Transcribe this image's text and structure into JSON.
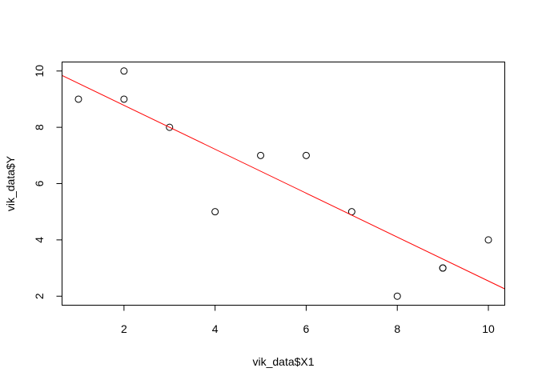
{
  "chart_data": {
    "type": "scatter",
    "title": "",
    "xlabel": "vik_data$X1",
    "ylabel": "vik_data$Y",
    "xlim": [
      0.64,
      10.36
    ],
    "ylim": [
      1.68,
      10.32
    ],
    "x_ticks": [
      2,
      4,
      6,
      8,
      10
    ],
    "y_ticks": [
      2,
      4,
      6,
      8,
      10
    ],
    "grid": false,
    "legend": "none",
    "points": [
      {
        "x": 1,
        "y": 9
      },
      {
        "x": 2,
        "y": 10
      },
      {
        "x": 2,
        "y": 9
      },
      {
        "x": 3,
        "y": 8
      },
      {
        "x": 4,
        "y": 5
      },
      {
        "x": 5,
        "y": 7
      },
      {
        "x": 6,
        "y": 7
      },
      {
        "x": 7,
        "y": 5
      },
      {
        "x": 8,
        "y": 2
      },
      {
        "x": 9,
        "y": 3
      },
      {
        "x": 9,
        "y": 3
      },
      {
        "x": 10,
        "y": 4
      }
    ],
    "fit_line": {
      "intercept": 10.34,
      "slope": -0.78,
      "color": "#ff0000"
    },
    "point_color": "#000000"
  }
}
